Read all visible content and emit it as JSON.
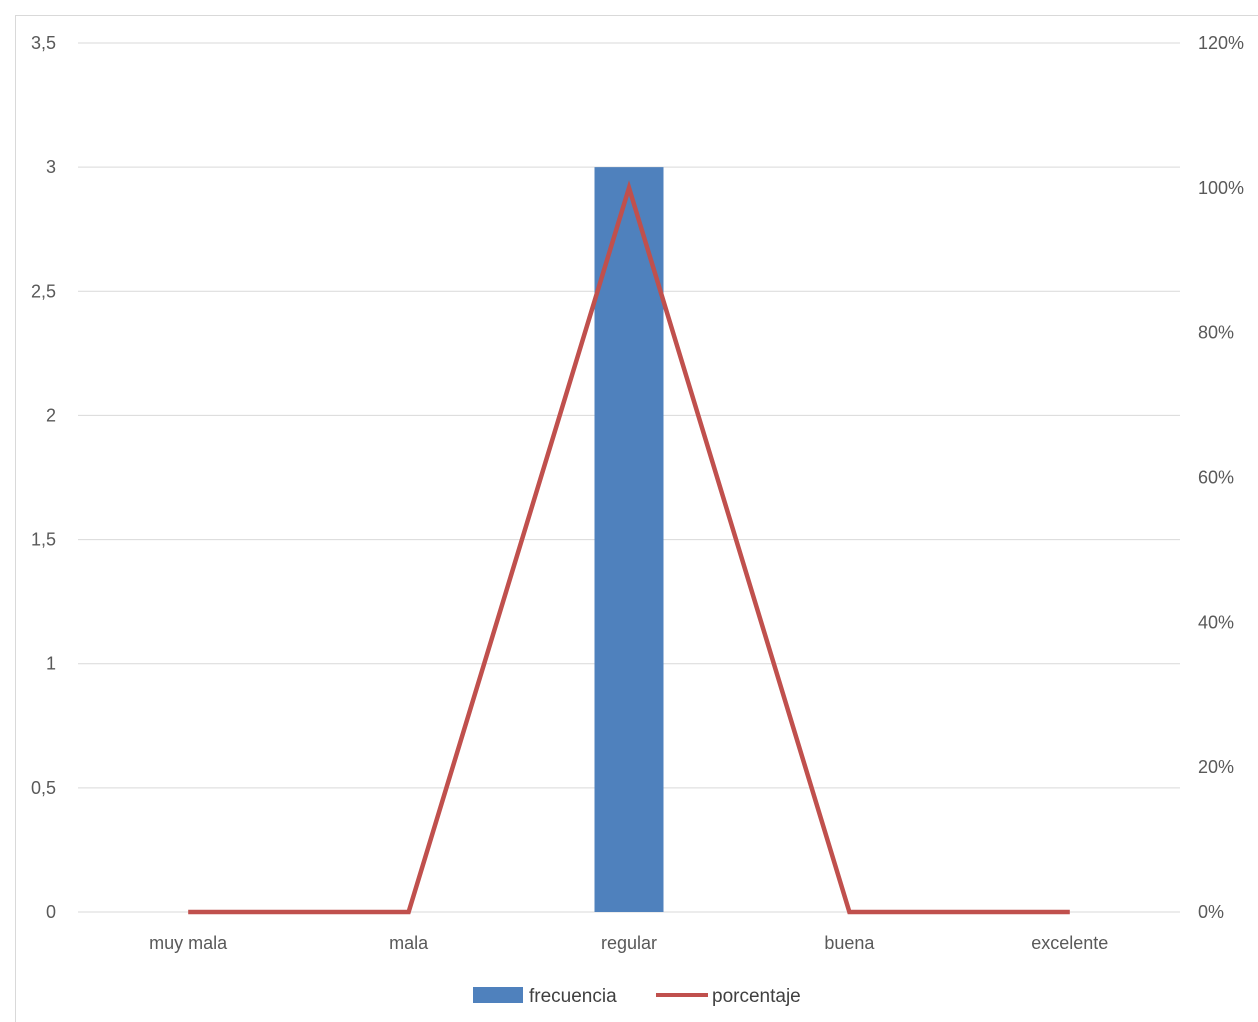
{
  "chart_data": {
    "type": "bar",
    "categories": [
      "muy mala",
      "mala",
      "regular",
      "buena",
      "excelente"
    ],
    "series": [
      {
        "name": "frecuencia",
        "type": "bar",
        "axis": "left",
        "values": [
          0,
          0,
          3,
          0,
          0
        ],
        "color": "#4f81bd"
      },
      {
        "name": "porcentaje",
        "type": "line",
        "axis": "right",
        "values": [
          0,
          0,
          1.0,
          0,
          0
        ],
        "color": "#c0504d"
      }
    ],
    "y_left": {
      "ylim": [
        0,
        3.5
      ],
      "ticks": [
        "0",
        "0,5",
        "1",
        "1,5",
        "2",
        "2,5",
        "3",
        "3,5"
      ]
    },
    "y_right": {
      "ylim": [
        0,
        1.2
      ],
      "ticks": [
        "0%",
        "20%",
        "40%",
        "60%",
        "80%",
        "100%",
        "120%"
      ]
    },
    "grid": true,
    "gridline_color": "#d9d9d9",
    "legend_position": "bottom",
    "legend": [
      "frecuencia",
      "porcentaje"
    ]
  }
}
